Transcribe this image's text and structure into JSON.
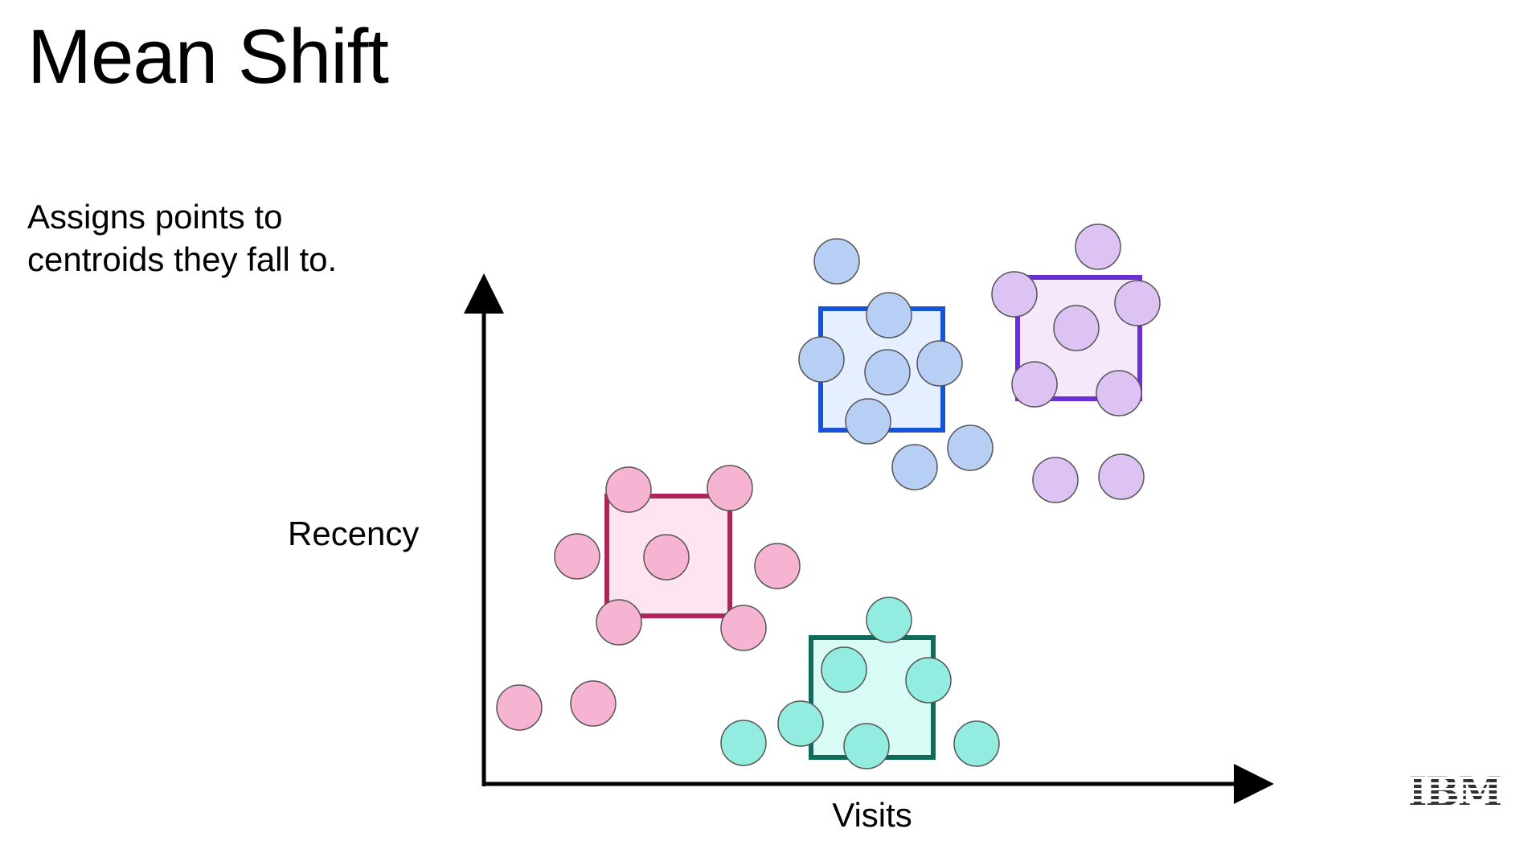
{
  "slide": {
    "title": "Mean Shift",
    "subtitle_lines": [
      "Assigns points to",
      "centroids they fall to."
    ]
  },
  "axes": {
    "y_label": "Recency",
    "x_label": "Visits"
  },
  "logo": {
    "text": "IBM"
  },
  "colors": {
    "axis": "#000000",
    "point_stroke": "#555555"
  },
  "clusters": [
    {
      "name": "pink",
      "stroke": "#b0245a",
      "window_fill": "#fde4f0",
      "point_fill": "#f7b3d2",
      "points": 10
    },
    {
      "name": "blue",
      "stroke": "#1653d6",
      "window_fill": "#e6efff",
      "point_fill": "#b8cff5",
      "points": 9
    },
    {
      "name": "purple",
      "stroke": "#6b2fd6",
      "window_fill": "#f6e8fb",
      "point_fill": "#dcc3f4",
      "points": 9
    },
    {
      "name": "teal",
      "stroke": "#0e6b5c",
      "window_fill": "#d8fbf6",
      "point_fill": "#93ece0",
      "points": 8
    }
  ]
}
